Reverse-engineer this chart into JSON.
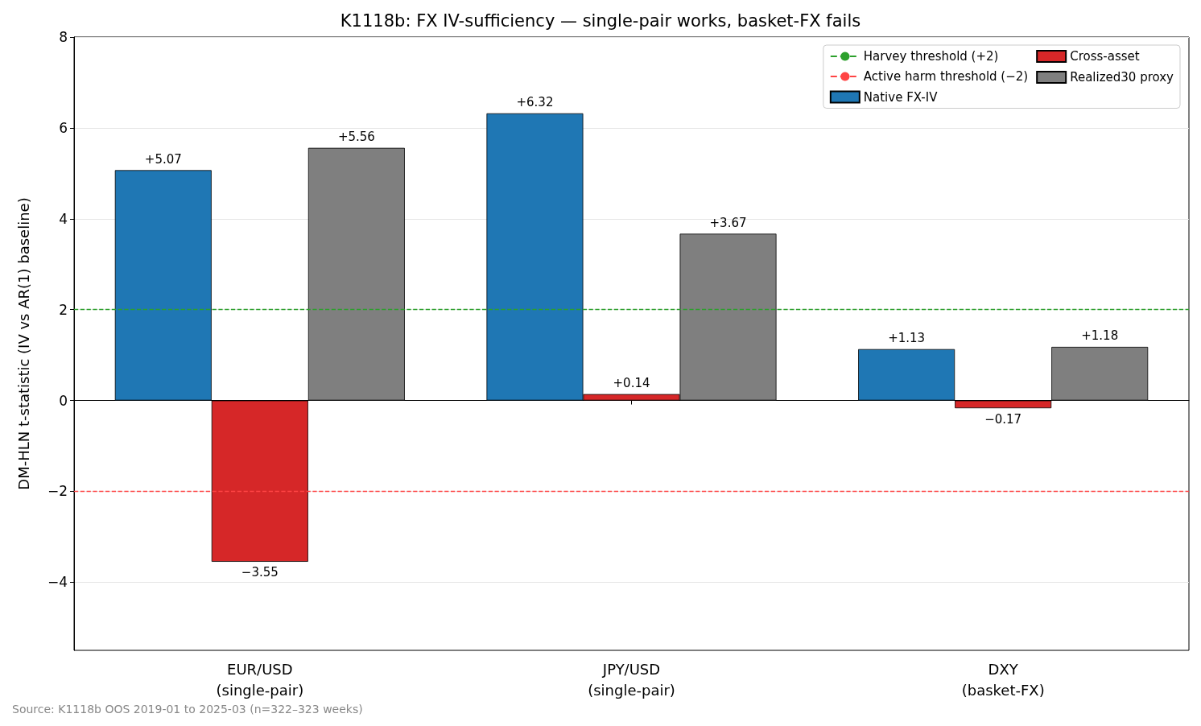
{
  "chart_data": {
    "type": "bar",
    "title": "K1118b: FX IV-sufficiency — single-pair works, basket-FX fails",
    "ylabel": "DM-HLN t-statistic (IV vs AR(1) baseline)",
    "categories": [
      "EUR/USD\n(single-pair)",
      "JPY/USD\n(single-pair)",
      "DXY\n(basket-FX)"
    ],
    "series": [
      {
        "name": "Native FX-IV",
        "color": "#1f77b4",
        "values": [
          5.07,
          6.32,
          1.13
        ],
        "value_labels": [
          "+5.07",
          "+6.32",
          "+1.13"
        ]
      },
      {
        "name": "Cross-asset",
        "color": "#d62728",
        "values": [
          -3.55,
          0.14,
          -0.17
        ],
        "value_labels": [
          "−3.55",
          "+0.14",
          "−0.17"
        ]
      },
      {
        "name": "Realized30 proxy",
        "color": "#7f7f7f",
        "values": [
          5.56,
          3.67,
          1.18
        ],
        "value_labels": [
          "+5.56",
          "+3.67",
          "+1.18"
        ]
      }
    ],
    "ref_lines": [
      {
        "axis": "y",
        "value": 2,
        "label": "Harvey threshold (+2)",
        "color": "#2ca02c",
        "line_style": "dashed"
      },
      {
        "axis": "y",
        "value": -2,
        "label": "Active harm threshold (−2)",
        "color": "#ff4444",
        "line_style": "dashed"
      }
    ],
    "ylim": [
      -5.5,
      8
    ],
    "yticks": [
      {
        "value": -4,
        "label": "−4"
      },
      {
        "value": -2,
        "label": "−2"
      },
      0,
      2,
      4,
      6,
      8
    ],
    "grid": "y",
    "legend": "top right",
    "annotations": [
      "Source: K1118b OOS 2019-01 to 2025-03 (n=322–323 weeks)"
    ]
  }
}
